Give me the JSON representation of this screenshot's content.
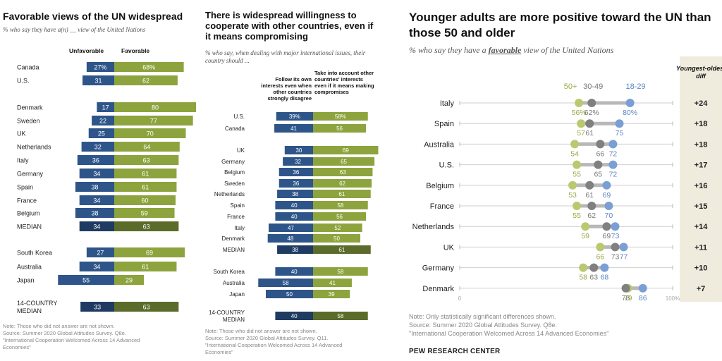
{
  "chart_data": [
    {
      "type": "bar",
      "title": "Favorable views of the UN widespread",
      "subtitle": "% who say they have a(n) __ view of the United Nations",
      "series": [
        {
          "name": "Unfavorable",
          "color": "#2e5589"
        },
        {
          "name": "Favorable",
          "color": "#8da33d"
        }
      ],
      "rows": [
        {
          "label": "Canada",
          "unfavorable": 27,
          "favorable": 68,
          "unfav_text": "27%",
          "fav_text": "68%"
        },
        {
          "label": "U.S.",
          "unfavorable": 31,
          "favorable": 62
        },
        {
          "label": "Denmark",
          "unfavorable": 17,
          "favorable": 80
        },
        {
          "label": "Sweden",
          "unfavorable": 22,
          "favorable": 77
        },
        {
          "label": "UK",
          "unfavorable": 25,
          "favorable": 70
        },
        {
          "label": "Netherlands",
          "unfavorable": 32,
          "favorable": 64
        },
        {
          "label": "Italy",
          "unfavorable": 36,
          "favorable": 63
        },
        {
          "label": "Germany",
          "unfavorable": 34,
          "favorable": 61
        },
        {
          "label": "Spain",
          "unfavorable": 38,
          "favorable": 61
        },
        {
          "label": "France",
          "unfavorable": 34,
          "favorable": 60
        },
        {
          "label": "Belgium",
          "unfavorable": 38,
          "favorable": 59
        },
        {
          "label": "MEDIAN",
          "unfavorable": 34,
          "favorable": 63,
          "median": true
        },
        {
          "label": "South Korea",
          "unfavorable": 27,
          "favorable": 69
        },
        {
          "label": "Australia",
          "unfavorable": 34,
          "favorable": 61
        },
        {
          "label": "Japan",
          "unfavorable": 55,
          "favorable": 29
        },
        {
          "label": "14-COUNTRY\nMEDIAN",
          "unfavorable": 33,
          "favorable": 63,
          "median": true
        }
      ],
      "note": "Note: Those who did not answer are not shown.\nSource: Summer 2020 Global Attitudes Survey. Q8e.\n\"International Cooperation Welcomed Across 14 Advanced\nEconomies\""
    },
    {
      "type": "bar",
      "title": "There is widespread willingness to cooperate with other countries, even if it means compromising",
      "subtitle": "% who say, when dealing with major international issues, their country should ...",
      "series": [
        {
          "name": "Follow its own interests even when other countries strongly disagree",
          "color": "#2e5589"
        },
        {
          "name": "Take into account other countries' interests even if it means making compromises",
          "color": "#8da33d"
        }
      ],
      "rows": [
        {
          "label": "U.S.",
          "own": 39,
          "others": 58,
          "own_text": "39%",
          "others_text": "58%"
        },
        {
          "label": "Canada",
          "own": 41,
          "others": 56
        },
        {
          "label": "UK",
          "own": 30,
          "others": 69
        },
        {
          "label": "Germany",
          "own": 32,
          "others": 65
        },
        {
          "label": "Belgium",
          "own": 36,
          "others": 63
        },
        {
          "label": "Sweden",
          "own": 36,
          "others": 62
        },
        {
          "label": "Netherlands",
          "own": 38,
          "others": 61
        },
        {
          "label": "Spain",
          "own": 40,
          "others": 58
        },
        {
          "label": "France",
          "own": 40,
          "others": 56
        },
        {
          "label": "Italy",
          "own": 47,
          "others": 52
        },
        {
          "label": "Denmark",
          "own": 48,
          "others": 50
        },
        {
          "label": "MEDIAN",
          "own": 38,
          "others": 61,
          "median": true
        },
        {
          "label": "South Korea",
          "own": 40,
          "others": 58
        },
        {
          "label": "Australia",
          "own": 58,
          "others": 41
        },
        {
          "label": "Japan",
          "own": 50,
          "others": 39
        },
        {
          "label": "14-COUNTRY\nMEDIAN",
          "own": 40,
          "others": 58,
          "median": true
        }
      ],
      "note": "Note: Those who did not answer are not shown.\nSource: Summer 2020 Global Attitudes Survey. Q11.\n\"International Cooperation Welcomed Across 14 Advanced\nEconomies\""
    },
    {
      "type": "scatter",
      "title": "Younger adults are more positive toward the UN than those 50 and older",
      "subtitle_pre": "% who say they have a ",
      "subtitle_em": "favorable",
      "subtitle_post": " view of the United Nations",
      "series": [
        {
          "name": "50+",
          "color": "#b9c970"
        },
        {
          "name": "30-49",
          "color": "#808080"
        },
        {
          "name": "18-29",
          "color": "#7a9fd4"
        }
      ],
      "diff_header": "Youngest-oldest diff",
      "xlim": [
        0,
        100
      ],
      "x_tick_labels": [
        "0",
        "100%"
      ],
      "rows": [
        {
          "label": "Italy",
          "a50": 56,
          "a30": 62,
          "a18": 80,
          "diff": "+24",
          "a50_text": "56%",
          "a30_text": "62%",
          "a18_text": "80%"
        },
        {
          "label": "Spain",
          "a50": 57,
          "a30": 61,
          "a18": 75,
          "diff": "+18"
        },
        {
          "label": "Australia",
          "a50": 54,
          "a30": 66,
          "a18": 72,
          "diff": "+18"
        },
        {
          "label": "U.S.",
          "a50": 55,
          "a30": 65,
          "a18": 72,
          "diff": "+17"
        },
        {
          "label": "Belgium",
          "a50": 53,
          "a30": 61,
          "a18": 69,
          "diff": "+16"
        },
        {
          "label": "France",
          "a50": 55,
          "a30": 62,
          "a18": 70,
          "diff": "+15"
        },
        {
          "label": "Netherlands",
          "a50": 59,
          "a30": 69,
          "a18": 73,
          "diff": "+14"
        },
        {
          "label": "UK",
          "a50": 66,
          "a30": 73,
          "a18": 77,
          "diff": "+11"
        },
        {
          "label": "Germany",
          "a50": 58,
          "a30": 63,
          "a18": 68,
          "diff": "+10"
        },
        {
          "label": "Denmark",
          "a50": 79,
          "a30": 78,
          "a18": 86,
          "diff": "+7"
        }
      ],
      "note": "Note: Only statistically significant differences shown.\nSource: Summer 2020 Global Attitudes Survey. Q8e.\n\"International Cooperation Welcomed Across 14 Advanced Economies\"",
      "brand": "PEW RESEARCH CENTER"
    }
  ]
}
